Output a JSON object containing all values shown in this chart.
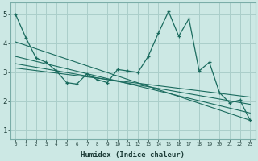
{
  "xlabel": "Humidex (Indice chaleur)",
  "xlim": [
    -0.5,
    23.5
  ],
  "ylim": [
    0.7,
    5.4
  ],
  "yticks": [
    1,
    2,
    3,
    4,
    5
  ],
  "xticks": [
    0,
    1,
    2,
    3,
    4,
    5,
    6,
    7,
    8,
    9,
    10,
    11,
    12,
    13,
    14,
    15,
    16,
    17,
    18,
    19,
    20,
    21,
    22,
    23
  ],
  "bg_color": "#cce8e4",
  "grid_color": "#aaceca",
  "line_color": "#1a6b5e",
  "main_line": [
    [
      0,
      5.0
    ],
    [
      1,
      4.2
    ],
    [
      2,
      3.5
    ],
    [
      3,
      3.35
    ],
    [
      4,
      3.05
    ],
    [
      5,
      2.65
    ],
    [
      6,
      2.6
    ],
    [
      7,
      2.95
    ],
    [
      8,
      2.75
    ],
    [
      9,
      2.65
    ],
    [
      10,
      3.1
    ],
    [
      11,
      3.05
    ],
    [
      12,
      3.0
    ],
    [
      13,
      3.55
    ],
    [
      14,
      4.35
    ],
    [
      15,
      5.1
    ],
    [
      16,
      4.25
    ],
    [
      17,
      4.85
    ],
    [
      18,
      3.05
    ],
    [
      19,
      3.35
    ],
    [
      20,
      2.3
    ],
    [
      21,
      1.95
    ],
    [
      22,
      2.05
    ],
    [
      23,
      1.35
    ]
  ],
  "trend_lines": [
    {
      "x": [
        0,
        23
      ],
      "y": [
        4.05,
        1.35
      ]
    },
    {
      "x": [
        0,
        23
      ],
      "y": [
        3.55,
        1.6
      ]
    },
    {
      "x": [
        0,
        23
      ],
      "y": [
        3.3,
        1.9
      ]
    },
    {
      "x": [
        0,
        23
      ],
      "y": [
        3.15,
        2.15
      ]
    }
  ]
}
